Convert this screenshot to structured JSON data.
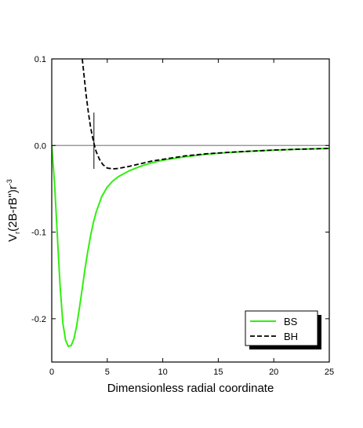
{
  "chart_data": {
    "type": "line",
    "xlabel": "Dimensionless radial coordinate",
    "ylabel_parts": [
      "V",
      "r",
      "(2B-rB\")r",
      "-3"
    ],
    "xlim": [
      0,
      25
    ],
    "ylim": [
      -0.25,
      0.1
    ],
    "x_ticks": [
      0,
      5,
      10,
      15,
      20,
      25
    ],
    "x_tick_labels": [
      "0",
      "5",
      "10",
      "15",
      "20",
      "25"
    ],
    "y_ticks": [
      0.1,
      0.0,
      -0.1,
      -0.2
    ],
    "y_tick_labels": [
      "0.1",
      "0.0",
      "-0.1",
      "-0.2"
    ],
    "zero_line": 0.0,
    "marker_line": {
      "x": 3.8,
      "y_from": -0.027,
      "y_to": 0.038
    },
    "legend_position": "bottom-right",
    "series": [
      {
        "name": "BS",
        "color": "#33ee11",
        "style": "solid",
        "x": [
          0.0,
          0.25,
          0.5,
          0.75,
          1.0,
          1.25,
          1.5,
          1.75,
          2.0,
          2.25,
          2.5,
          2.75,
          3.0,
          3.25,
          3.5,
          3.75,
          4.0,
          4.5,
          5.0,
          5.5,
          6.0,
          7.0,
          8.0,
          9.0,
          10.0,
          12.0,
          14.0,
          16.0,
          18.0,
          20.0,
          22.0,
          24.0,
          25.0
        ],
        "y": [
          0.0,
          -0.043,
          -0.103,
          -0.162,
          -0.205,
          -0.225,
          -0.232,
          -0.231,
          -0.223,
          -0.208,
          -0.187,
          -0.165,
          -0.142,
          -0.122,
          -0.104,
          -0.089,
          -0.077,
          -0.059,
          -0.048,
          -0.041,
          -0.036,
          -0.029,
          -0.024,
          -0.02,
          -0.017,
          -0.013,
          -0.01,
          -0.008,
          -0.0065,
          -0.0053,
          -0.0044,
          -0.0037,
          -0.0034
        ]
      },
      {
        "name": "BH",
        "color": "#000000",
        "style": "dashed",
        "x": [
          2.75,
          2.9,
          3.1,
          3.3,
          3.5,
          3.7,
          3.85,
          4.0,
          4.3,
          4.6,
          5.0,
          5.5,
          6.0,
          7.0,
          8.0,
          9.0,
          10.0,
          12.0,
          14.0,
          16.0,
          18.0,
          20.0,
          22.0,
          24.0,
          25.0
        ],
        "y": [
          0.1,
          0.082,
          0.058,
          0.038,
          0.021,
          0.008,
          0.0,
          -0.007,
          -0.016,
          -0.022,
          -0.026,
          -0.027,
          -0.0265,
          -0.024,
          -0.021,
          -0.018,
          -0.016,
          -0.012,
          -0.0095,
          -0.0078,
          -0.0065,
          -0.0053,
          -0.0044,
          -0.0037,
          -0.0034
        ]
      }
    ]
  }
}
